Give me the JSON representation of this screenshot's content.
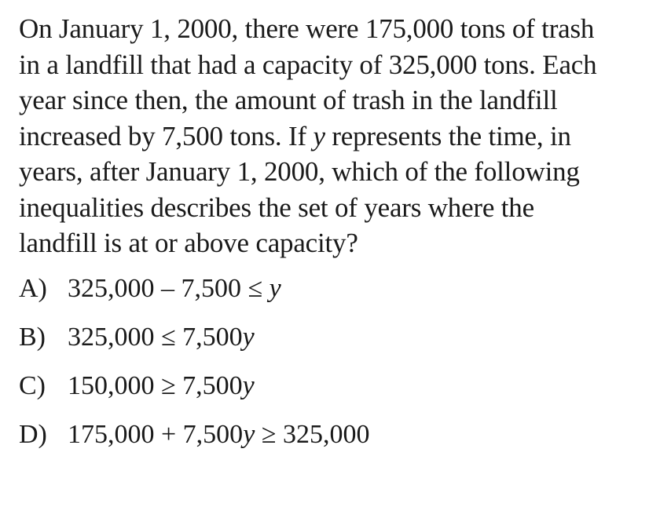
{
  "question": {
    "lines": [
      "On January 1, 2000, there were 175,000 tons of trash",
      "in a landfill that had a capacity of 325,000 tons.  Each",
      "year since then, the amount of trash in the landfill",
      {
        "pre": "increased by 7,500 tons.  If ",
        "var": "y",
        "post": " represents the time, in"
      },
      "years, after January 1, 2000, which of the following",
      "inequalities describes the set of years where the",
      "landfill is at or above capacity?"
    ]
  },
  "choices": [
    {
      "letter": "A)",
      "pre": "325,000 – 7,500 ≤ ",
      "var": "y",
      "post": ""
    },
    {
      "letter": "B)",
      "pre": "325,000 ≤ 7,500",
      "var": "y",
      "post": ""
    },
    {
      "letter": "C)",
      "pre": "150,000 ≥ 7,500",
      "var": "y",
      "post": ""
    },
    {
      "letter": "D)",
      "pre": "175,000 + 7,500",
      "var": "y",
      "post": " ≥ 325,000"
    }
  ]
}
